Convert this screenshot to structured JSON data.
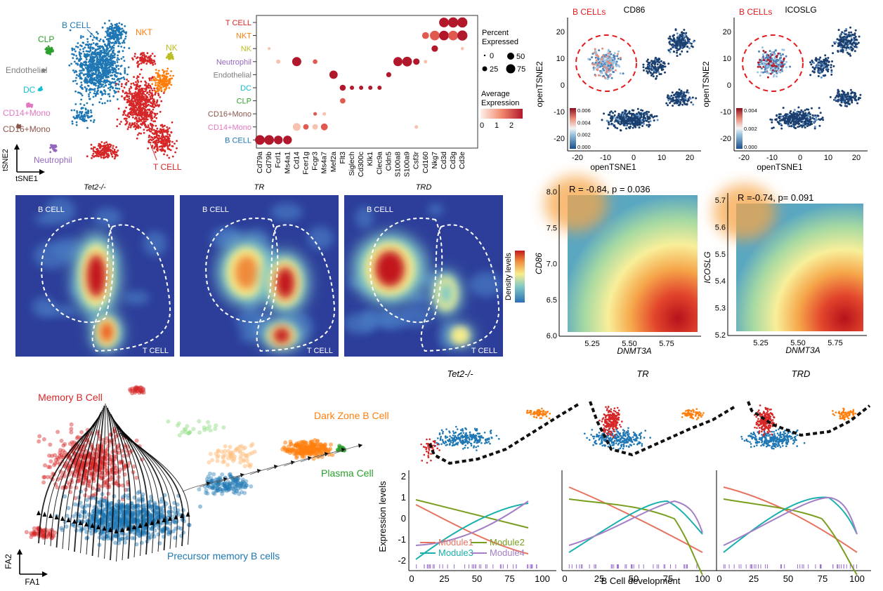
{
  "colors": {
    "b_cell": "#1f77b4",
    "t_cell": "#d62728",
    "nkt": "#ff7f0e",
    "nk": "#bcbd22",
    "neutrophil": "#9467bd",
    "endothelial": "#7f7f7f",
    "dc": "#17becf",
    "clp": "#2ca02c",
    "cd16_mono": "#8c564b",
    "cd14_mono": "#e377c2",
    "dot_low": "#fde0d2",
    "dot_high": "#b2182b",
    "density_low": "#2c3e99",
    "density_high": "#c2191e",
    "trajectory": "#111111",
    "module1": "#e6735f",
    "module2": "#7a9e1f",
    "module3": "#19b0ad",
    "module4": "#a37fc5"
  },
  "tsne": {
    "x_label": "tSNE1",
    "y_label": "tSNE2",
    "clusters": [
      {
        "key": "b_cell",
        "label": "B CELL"
      },
      {
        "key": "nkt",
        "label": "NKT"
      },
      {
        "key": "nk",
        "label": "NK"
      },
      {
        "key": "clp",
        "label": "CLP"
      },
      {
        "key": "endothelial",
        "label": "Endothelial"
      },
      {
        "key": "dc",
        "label": "DC"
      },
      {
        "key": "cd14_mono",
        "label": "CD14+Mono"
      },
      {
        "key": "cd16_mono",
        "label": "CD16+Mono"
      },
      {
        "key": "neutrophil",
        "label": "Neutrophil"
      },
      {
        "key": "t_cell",
        "label": "T CELL"
      }
    ]
  },
  "dotplot": {
    "cell_types": [
      "T CELL",
      "NKT",
      "NK",
      "Neutrophil",
      "Endothelial",
      "DC",
      "CLP",
      "CD16+Mono",
      "CD14+Mono",
      "B CELL"
    ],
    "genes": [
      "Cd79a",
      "Cd79b",
      "Fcrl1",
      "Ms4a1",
      "Cd14",
      "Fcer1g",
      "Fcgr3",
      "Ms4a7",
      "Mef2a",
      "Flt3",
      "Siglech",
      "Cd300c",
      "Klk1",
      "Clec9a",
      "Cldn5",
      "S100a8",
      "S100a9",
      "Csf3r",
      "Cd160",
      "Nkg7",
      "Cd3d",
      "Cd3g",
      "Cd3e"
    ],
    "percent_title_lines": [
      "Percent",
      "Expressed"
    ],
    "percent_levels": [
      "0",
      "25",
      "50",
      "75"
    ],
    "avg_title_lines": [
      "Average",
      "Expression"
    ],
    "avg_ticks": [
      "0",
      "1",
      "2"
    ]
  },
  "feature_tsne": {
    "x_label": "openTSNE1",
    "y_label": "openTSNE2",
    "highlight_label": "B CELLs",
    "x_ticks": [
      "-20",
      "-10",
      "0",
      "10",
      "20"
    ],
    "y_ticks": [
      "20",
      "10",
      "0",
      "-10",
      "-20"
    ],
    "panels": [
      {
        "title": "CD86",
        "scale": [
          "0.006",
          "0.004",
          "0.002",
          "0.000"
        ]
      },
      {
        "title": "ICOSLG",
        "scale": [
          "0.004",
          "0.002",
          "0.000"
        ]
      }
    ]
  },
  "density": {
    "panels": [
      "Tet2-/-",
      "TR",
      "TRD"
    ],
    "top_label": "B CELL",
    "bottom_label": "T CELL",
    "legend_title": "Density levels"
  },
  "correlation": [
    {
      "stat": "R = -0.84, p = 0.036",
      "y_label": "CD86",
      "x_label": "DNMT3A",
      "y_ticks": [
        "8.0",
        "7.5",
        "7.0",
        "6.5",
        "6.0"
      ],
      "x_ticks": [
        "5.25",
        "5.50",
        "5.75"
      ]
    },
    {
      "stat": "R =-0.74, p= 0.091",
      "y_label": "ICOSLG",
      "x_label": "DNMT3A",
      "y_ticks": [
        "5.7",
        "5.6",
        "5.5",
        "5.4",
        "5.3",
        "5.2"
      ],
      "x_ticks": [
        "5.25",
        "5.50",
        "5.75"
      ]
    }
  ],
  "trajectory": {
    "labels": {
      "memory": "Memory B Cell",
      "dark_zone": "Dark Zone B Cell",
      "plasma": "Plasma Cell",
      "precursor": "Precursor memory B cells"
    },
    "x_label": "FA1",
    "y_label": "FA2"
  },
  "modules": {
    "panel_titles": [
      "Tet2-/-",
      "TR",
      "TRD"
    ],
    "y_label": "Expression levels",
    "x_label": "B Cell development",
    "x_ticks": [
      "0",
      "25",
      "50",
      "75",
      "100"
    ],
    "y_ticks": [
      "2",
      "1",
      "0",
      "-1",
      "-2"
    ],
    "legend": [
      "Module1",
      "Module2",
      "Module3",
      "Module4"
    ]
  }
}
